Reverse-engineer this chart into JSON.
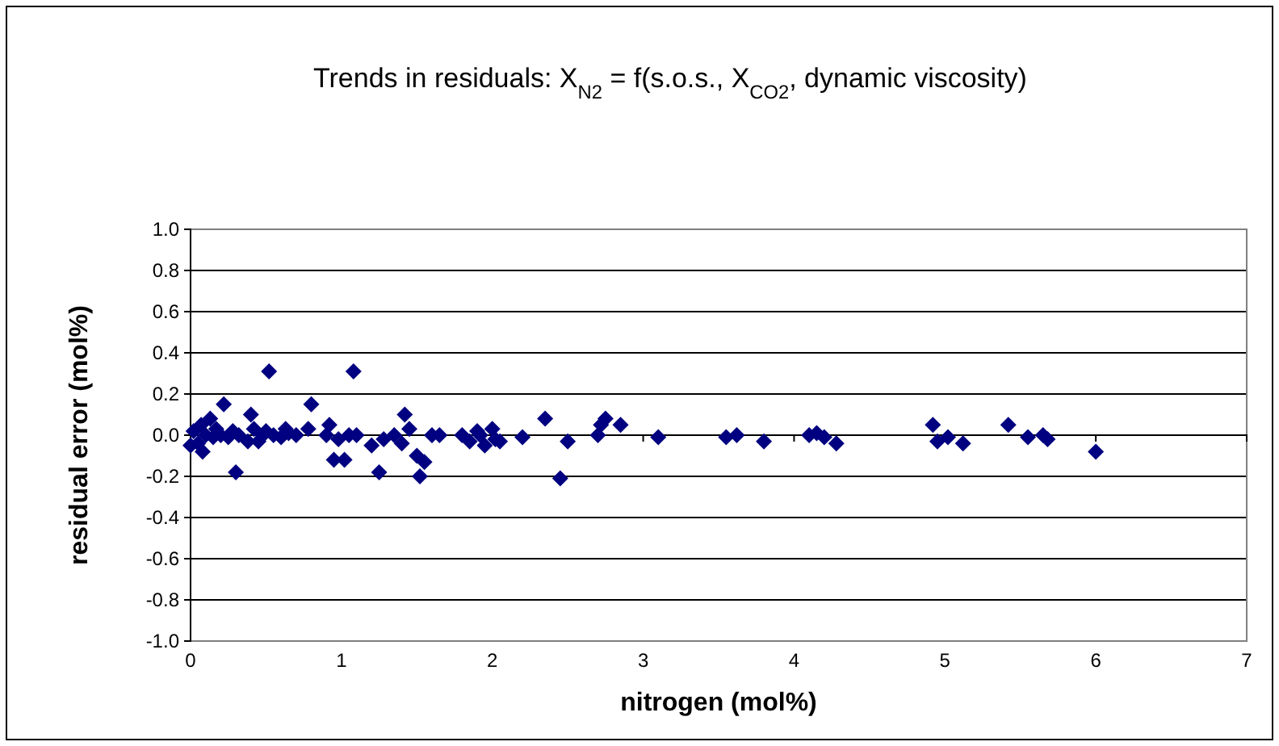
{
  "chart_data": {
    "type": "scatter",
    "title": "Trends in residuals: X$_{N2}$ = f(s.o.s., X$_{CO2}$, dynamic viscosity)",
    "xlabel": "nitrogen (mol%)",
    "ylabel": "residual error (mol%)",
    "xlim": [
      0,
      7
    ],
    "xticks": [
      0,
      1,
      2,
      3,
      4,
      5,
      6,
      7
    ],
    "ylim": [
      -1,
      1
    ],
    "yticks": [
      {
        "value": -1,
        "label": "-1.0"
      },
      {
        "value": -0.8,
        "label": "-0.8"
      },
      {
        "value": -0.6,
        "label": "-0.6"
      },
      {
        "value": -0.4,
        "label": "-0.4"
      },
      {
        "value": -0.2,
        "label": "-0.2"
      },
      {
        "value": 0,
        "label": "0.0"
      },
      {
        "value": 0.2,
        "label": "0.2"
      },
      {
        "value": 0.4,
        "label": "0.4"
      },
      {
        "value": 0.6,
        "label": "0.6"
      },
      {
        "value": 0.8,
        "label": "0.8"
      },
      {
        "value": 1,
        "label": "1.0"
      }
    ],
    "grid": "y",
    "marker": "diamond",
    "series": [
      {
        "color": "#000080",
        "x": [
          0.0,
          0.02,
          0.05,
          0.07,
          0.08,
          0.1,
          0.13,
          0.15,
          0.17,
          0.2,
          0.22,
          0.25,
          0.28,
          0.3,
          0.32,
          0.38,
          0.4,
          0.42,
          0.45,
          0.48,
          0.5,
          0.52,
          0.55,
          0.6,
          0.63,
          0.65,
          0.7,
          0.78,
          0.8,
          0.9,
          0.92,
          0.95,
          0.98,
          1.02,
          1.05,
          1.08,
          1.1,
          1.2,
          1.25,
          1.28,
          1.35,
          1.4,
          1.42,
          1.45,
          1.5,
          1.52,
          1.55,
          1.6,
          1.65,
          1.8,
          1.85,
          1.9,
          1.92,
          1.95,
          2.0,
          2.02,
          2.05,
          2.2,
          2.35,
          2.45,
          2.5,
          2.7,
          2.72,
          2.75,
          2.85,
          3.1,
          3.55,
          3.62,
          3.8,
          4.1,
          4.15,
          4.2,
          4.28,
          4.92,
          4.95,
          5.02,
          5.12,
          5.42,
          5.55,
          5.65,
          5.68,
          6.0
        ],
        "values": [
          -0.05,
          0.02,
          -0.04,
          0.05,
          -0.08,
          0.0,
          0.08,
          -0.01,
          0.03,
          0.0,
          0.15,
          -0.01,
          0.02,
          -0.18,
          0.0,
          -0.03,
          0.1,
          0.03,
          -0.03,
          0.0,
          0.02,
          0.31,
          0.0,
          -0.01,
          0.03,
          0.01,
          0.0,
          0.03,
          0.15,
          0.0,
          0.05,
          -0.12,
          -0.02,
          -0.12,
          0.0,
          0.31,
          0.0,
          -0.05,
          -0.18,
          -0.02,
          0.0,
          -0.04,
          0.1,
          0.03,
          -0.1,
          -0.2,
          -0.13,
          0.0,
          0.0,
          0.0,
          -0.03,
          0.02,
          0.0,
          -0.05,
          0.03,
          -0.02,
          -0.03,
          -0.01,
          0.08,
          -0.21,
          -0.03,
          0.0,
          0.05,
          0.08,
          0.05,
          -0.01,
          -0.01,
          0.0,
          -0.03,
          0.0,
          0.01,
          -0.01,
          -0.04,
          0.05,
          -0.03,
          -0.01,
          -0.04,
          0.05,
          -0.01,
          0.0,
          -0.02,
          -0.08
        ]
      }
    ]
  }
}
